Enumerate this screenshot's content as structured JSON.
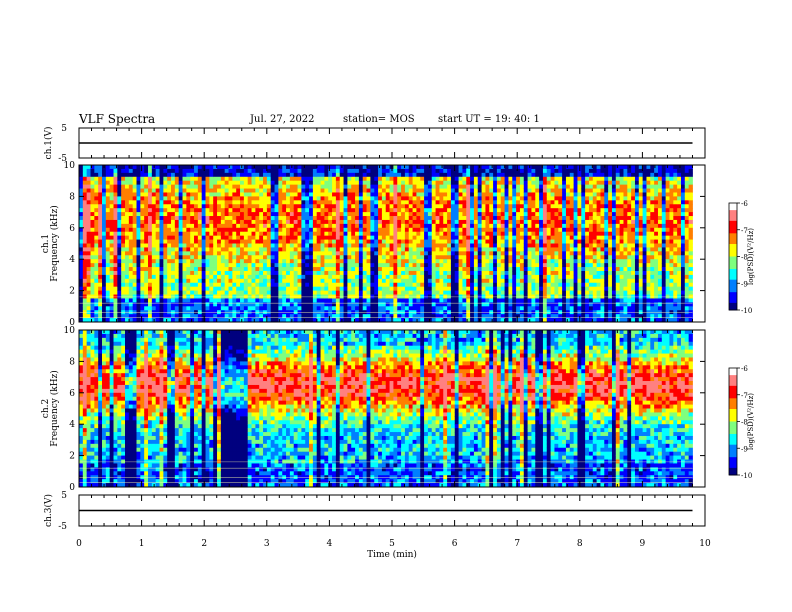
{
  "header": {
    "title": "VLF Spectra",
    "date": "Jul. 27, 2022",
    "station": "station= MOS",
    "start": "start UT =  19: 40: 1"
  },
  "panels": {
    "ch1_signal_label": "ch.1(V)",
    "ch1_spec_label": "ch.1\nFrequency (kHz)",
    "ch2_spec_label": "ch.2\nFrequency (kHz)",
    "ch3_signal_label": "ch.3(V)",
    "xlabel": "Time (min)",
    "colorbar_label": "log(PSD)(V²/Hz)"
  },
  "colors": {
    "jet": [
      "#00007f",
      "#0000ff",
      "#007fff",
      "#00ffff",
      "#7fff7f",
      "#ffff00",
      "#ff7f00",
      "#ff0000",
      "#ff8080",
      "#ffffff"
    ]
  },
  "chart_data": [
    {
      "type": "line",
      "name": "ch1 signal",
      "ylabel": "ch.1(V)",
      "ylim": [
        -5,
        5
      ],
      "yticks": [
        "5",
        "-5"
      ],
      "x": [
        0,
        9.8
      ],
      "y": [
        0,
        0
      ],
      "xlim": [
        0,
        10
      ]
    },
    {
      "type": "heatmap",
      "name": "ch1 spectrogram",
      "ylabel": "ch.1 Frequency (kHz)",
      "ylim": [
        0,
        10
      ],
      "yticks": [
        "0",
        "2",
        "4",
        "6",
        "8",
        "10"
      ],
      "xlim": [
        0,
        10
      ],
      "data_extent_min": 9.8,
      "band_center_khz": 6.5,
      "colorbar": {
        "label": "log(PSD)(V²/Hz)",
        "range": [
          -10,
          -6
        ],
        "ticks": [
          "-6",
          "-7",
          "-8",
          "-9",
          "-10"
        ]
      }
    },
    {
      "type": "heatmap",
      "name": "ch2 spectrogram",
      "ylabel": "ch.2 Frequency (kHz)",
      "ylim": [
        0,
        10
      ],
      "yticks": [
        "0",
        "2",
        "4",
        "6",
        "8",
        "10"
      ],
      "xlim": [
        0,
        10
      ],
      "data_extent_min": 9.8,
      "band_center_khz": 6.5,
      "colorbar": {
        "label": "log(PSD)(V²/Hz)",
        "range": [
          -10,
          -6
        ],
        "ticks": [
          "-6",
          "-7",
          "-8",
          "-9",
          "-10"
        ]
      }
    },
    {
      "type": "line",
      "name": "ch3 signal",
      "ylabel": "ch.3(V)",
      "ylim": [
        -5,
        5
      ],
      "yticks": [
        "5",
        "-5"
      ],
      "x": [
        0,
        9.8
      ],
      "y": [
        0,
        0
      ],
      "xlim": [
        0,
        10
      ],
      "xlabel": "Time (min)",
      "xticks": [
        "0",
        "1",
        "2",
        "3",
        "4",
        "5",
        "6",
        "7",
        "8",
        "9",
        "10"
      ]
    }
  ]
}
